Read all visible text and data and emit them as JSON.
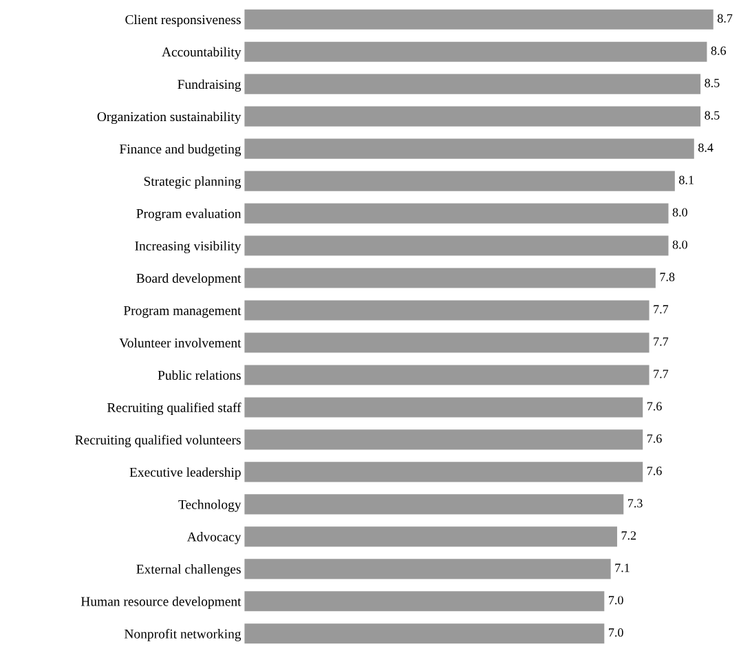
{
  "chart_data": {
    "type": "bar",
    "orientation": "horizontal",
    "categories": [
      "Client responsiveness",
      "Accountability",
      "Fundraising",
      "Organization sustainability",
      "Finance and budgeting",
      "Strategic planning",
      "Program evaluation",
      "Increasing visibility",
      "Board development",
      "Program management",
      "Volunteer involvement",
      "Public relations",
      "Recruiting qualified staff",
      "Recruiting qualified volunteers",
      "Executive leadership",
      "Technology",
      "Advocacy",
      "External challenges",
      "Human resource development",
      "Nonprofit networking"
    ],
    "values": [
      8.7,
      8.6,
      8.5,
      8.5,
      8.4,
      8.1,
      8.0,
      8.0,
      7.8,
      7.7,
      7.7,
      7.7,
      7.6,
      7.6,
      7.6,
      7.3,
      7.2,
      7.1,
      7.0,
      7.0
    ],
    "value_labels": [
      "8.7",
      "8.6",
      "8.5",
      "8.5",
      "8.4",
      "8.1",
      "8.0",
      "8.0",
      "7.8",
      "7.7",
      "7.7",
      "7.7",
      "7.6",
      "7.6",
      "7.6",
      "7.3",
      "7.2",
      "7.1",
      "7.0",
      "7.0"
    ],
    "color": "#999999",
    "tick_labels": "y",
    "grid": false,
    "legend": false
  }
}
